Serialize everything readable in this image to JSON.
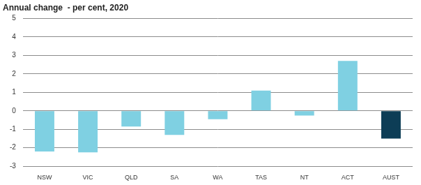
{
  "chart_data": {
    "type": "bar",
    "title": "Annual change  - per cent, 2020",
    "categories": [
      "NSW",
      "VIC",
      "QLD",
      "SA",
      "WA",
      "TAS",
      "NT",
      "ACT",
      "AUST"
    ],
    "values": [
      -2.2,
      -2.25,
      -0.85,
      -1.3,
      -0.45,
      1.1,
      -0.25,
      2.7,
      -1.5
    ],
    "colors": [
      "#7fd0e2",
      "#7fd0e2",
      "#7fd0e2",
      "#7fd0e2",
      "#7fd0e2",
      "#7fd0e2",
      "#7fd0e2",
      "#7fd0e2",
      "#0d3d56"
    ],
    "ylim": [
      -3,
      5
    ],
    "yticks": [
      -3,
      -2,
      -1,
      0,
      1,
      2,
      3,
      4,
      5
    ],
    "grid": true
  }
}
